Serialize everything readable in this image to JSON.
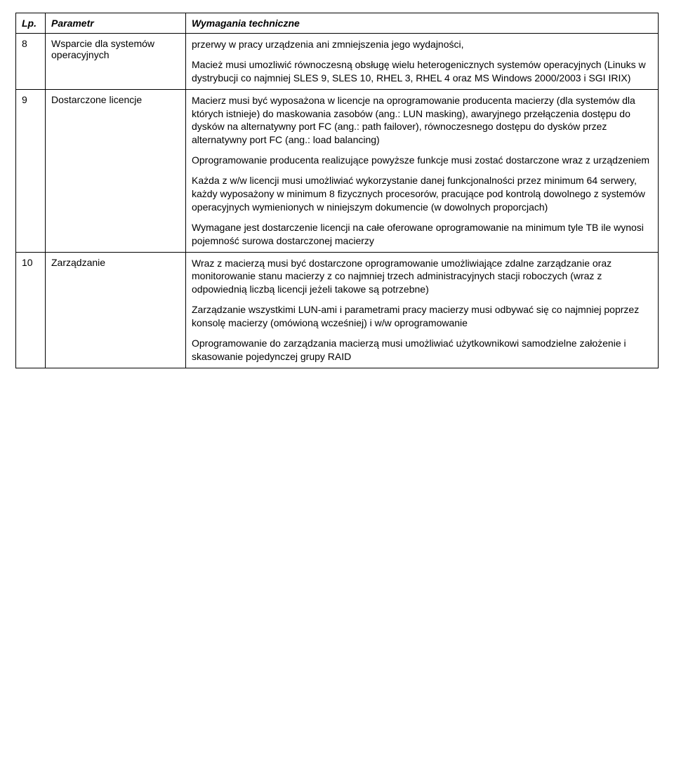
{
  "table": {
    "headers": {
      "lp": "Lp.",
      "param": "Parametr",
      "req": "Wymagania techniczne"
    },
    "rows": [
      {
        "lp": "8",
        "param": "Wsparcie dla systemów operacyjnych",
        "req": [
          "przerwy w pracy urządzenia ani zmniejszenia jego wydajności,",
          "Macież musi umozliwić równoczesną obsługę wielu heterogenicznych systemów operacyjnych (Linuks w dystrybucji co najmniej SLES 9, SLES 10, RHEL 3, RHEL 4 oraz MS Windows 2000/2003 i SGI IRIX)"
        ]
      },
      {
        "lp": "9",
        "param": "Dostarczone licencje",
        "req": [
          "Macierz musi być wyposażona w licencje na oprogramowanie producenta macierzy (dla systemów dla których istnieje) do maskowania zasobów (ang.: LUN masking), awaryjnego przełączenia dostępu do dysków na alternatywny port FC (ang.: path failover), równoczesnego dostępu do dysków przez alternatywny port FC (ang.: load balancing)",
          "Oprogramowanie producenta realizujące powyższe funkcje musi zostać dostarczone wraz z urządzeniem",
          "Każda z w/w licencji musi umożliwiać wykorzystanie danej funkcjonalności przez minimum 64 serwery, każdy wyposażony w minimum 8 fizycznych procesorów, pracujące pod kontrolą dowolnego z systemów operacyjnych wymienionych w niniejszym dokumencie (w dowolnych proporcjach)",
          "Wymagane jest dostarczenie licencji na całe oferowane oprogramowanie na minimum tyle TB ile wynosi pojemność surowa dostarczonej macierzy"
        ]
      },
      {
        "lp": "10",
        "param": "Zarządzanie",
        "req": [
          "Wraz z macierzą musi być dostarczone oprogramowanie umożliwiające zdalne zarządzanie oraz monitorowanie stanu macierzy z co najmniej trzech administracyjnych stacji roboczych (wraz z odpowiednią liczbą licencji jeżeli takowe są potrzebne)",
          "Zarządzanie wszystkimi LUN-ami i parametrami pracy macierzy musi odbywać się co najmniej poprzez konsolę macierzy (omówioną wcześniej) i w/w oprogramowanie",
          "Oprogramowanie do zarządzania macierzą musi umożliwiać użytkownikowi samodzielne założenie i skasowanie pojedynczej grupy RAID"
        ]
      }
    ]
  },
  "colors": {
    "text": "#000000",
    "background": "#ffffff",
    "border": "#000000"
  },
  "typography": {
    "font_family": "Verdana",
    "base_size_pt": 11,
    "header_weight": "bold",
    "header_style": "italic"
  }
}
